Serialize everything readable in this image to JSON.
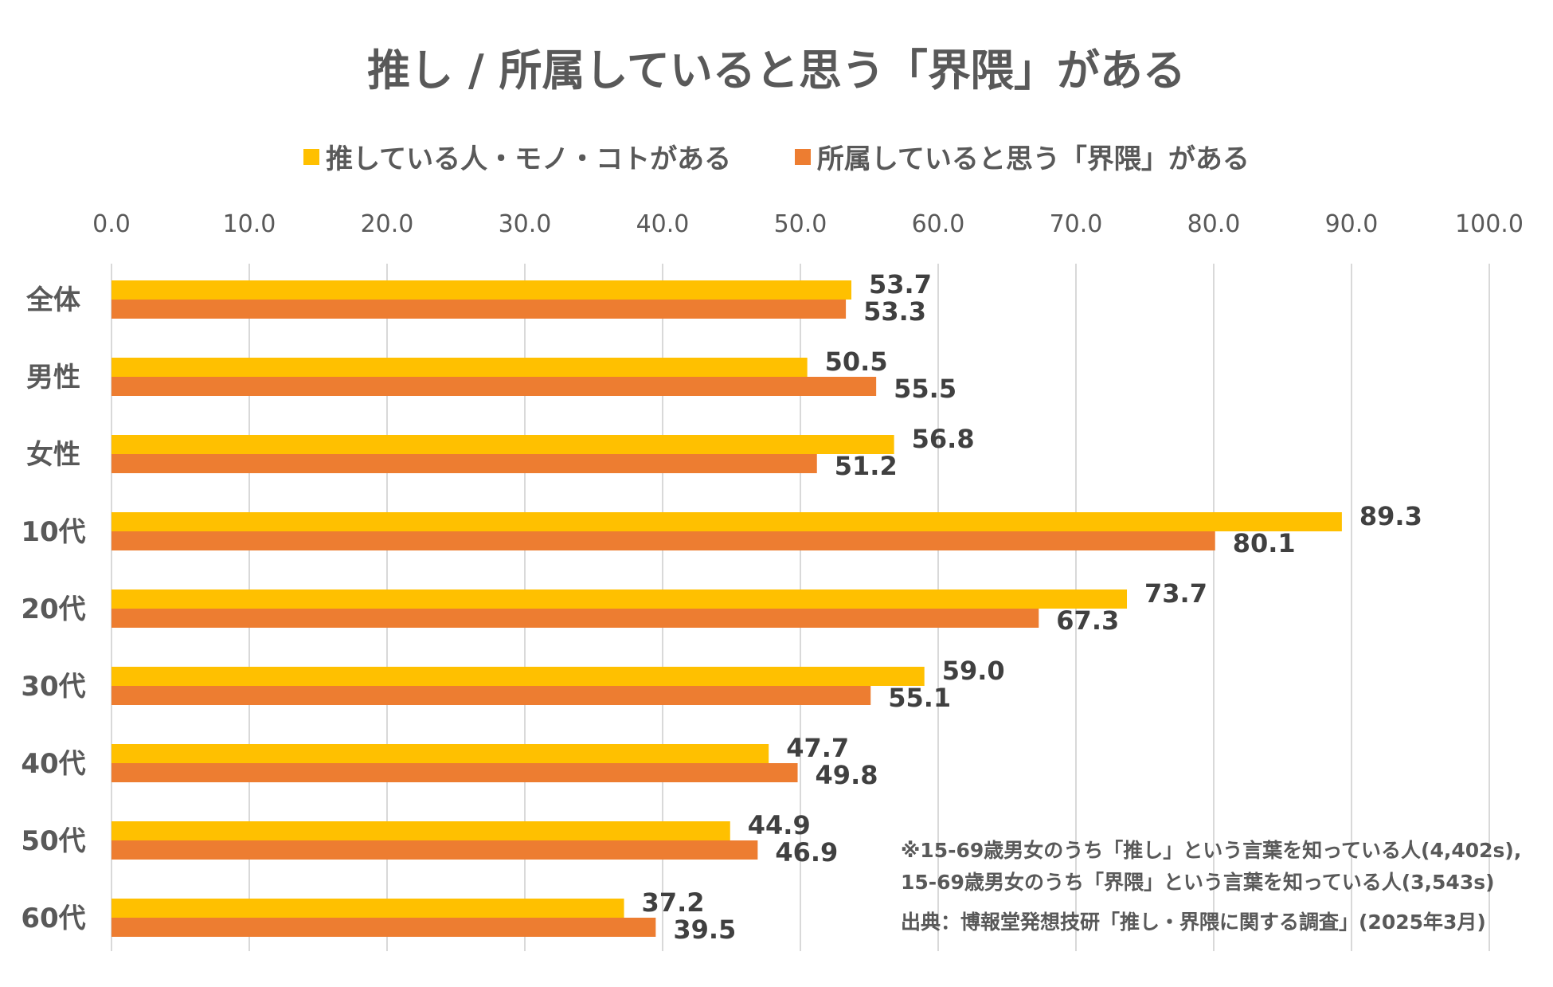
{
  "chart_data": {
    "type": "bar",
    "orientation": "horizontal",
    "title": "推し / 所属していると思う「界隈」がある",
    "categories": [
      "全体",
      "男性",
      "女性",
      "10代",
      "20代",
      "30代",
      "40代",
      "50代",
      "60代"
    ],
    "series": [
      {
        "name": "推している人・モノ・コトがある",
        "color": "#FFC000",
        "values": [
          53.7,
          50.5,
          56.8,
          89.3,
          73.7,
          59.0,
          47.7,
          44.9,
          37.2
        ]
      },
      {
        "name": "所属していると思う「界隈」がある",
        "color": "#ED7D31",
        "values": [
          53.3,
          55.5,
          51.2,
          80.1,
          67.3,
          55.1,
          49.8,
          46.9,
          39.5
        ]
      }
    ],
    "xlim": [
      0,
      100
    ],
    "xticks": [
      "0.0",
      "10.0",
      "20.0",
      "30.0",
      "40.0",
      "50.0",
      "60.0",
      "70.0",
      "80.0",
      "90.0",
      "100.0"
    ],
    "grid": true,
    "axis_position": "top",
    "legend_placement": "top",
    "data_labels": true
  },
  "notes": {
    "line1": "※15-69歳男女のうち「推し」という言葉を知っている人(4,402s),",
    "line2": "15-69歳男女のうち「界隈」という言葉を知っている人(3,543s)",
    "source": "出典：博報堂発想技研「推し・界隈に関する調査」(2025年3月)"
  }
}
